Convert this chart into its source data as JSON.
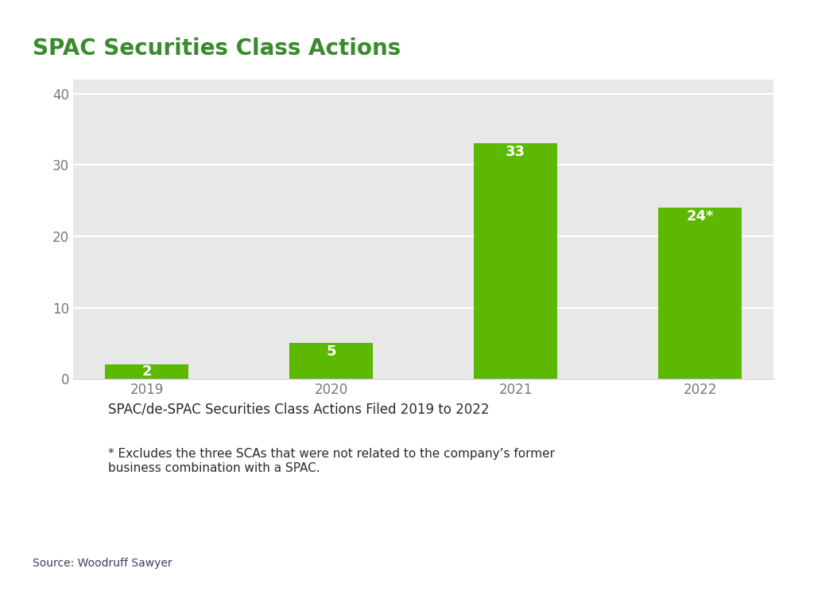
{
  "title": "SPAC Securities Class Actions",
  "title_color": "#3a8a2e",
  "title_fontsize": 20,
  "categories": [
    "2019",
    "2020",
    "2021",
    "2022"
  ],
  "values": [
    2,
    5,
    33,
    24
  ],
  "bar_labels": [
    "2",
    "5",
    "33",
    "24*"
  ],
  "bar_color": "#5cb800",
  "bar_label_color": "#ffffff",
  "bar_label_fontsize": 13,
  "ylim": [
    0,
    42
  ],
  "yticks": [
    0,
    10,
    20,
    30,
    40
  ],
  "plot_background": "#e8e8e8",
  "outer_background": "#ffffff",
  "grid_color": "#ffffff",
  "tick_label_color": "#777777",
  "tick_fontsize": 12,
  "caption_title": "SPAC/de-SPAC Securities Class Actions Filed 2019 to 2022",
  "caption_title_fontsize": 12,
  "caption_body": "* Excludes the three SCAs that were not related to the company’s former\nbusiness combination with a SPAC.",
  "caption_body_fontsize": 11,
  "source_text": "Source: Woodruff Sawyer",
  "source_fontsize": 10,
  "source_color": "#3a3f5c"
}
